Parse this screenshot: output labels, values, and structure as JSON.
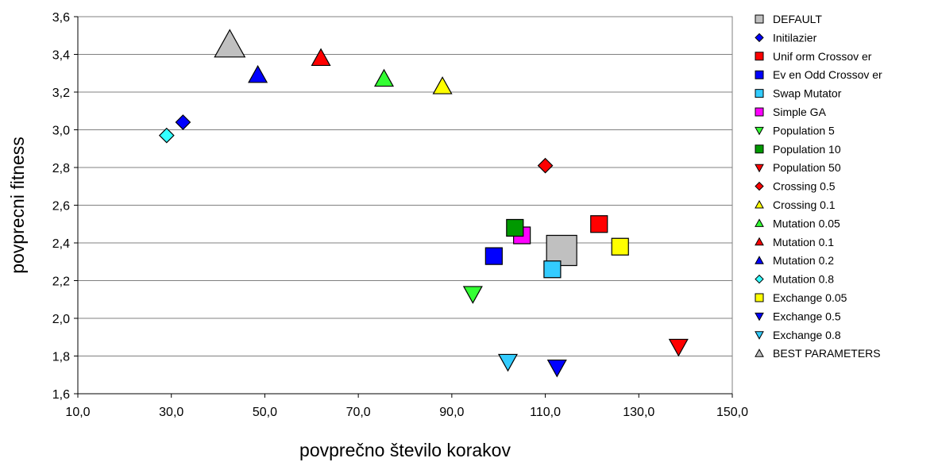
{
  "chart_data": {
    "type": "scatter",
    "xlabel": "povprečno število korakov",
    "ylabel": "povprecni fitness",
    "xlim": [
      10,
      150
    ],
    "ylim": [
      1.6,
      3.6
    ],
    "x_ticks": [
      "10,0",
      "30,0",
      "50,0",
      "70,0",
      "90,0",
      "110,0",
      "130,0",
      "150,0"
    ],
    "y_ticks": [
      "1,6",
      "1,8",
      "2,0",
      "2,2",
      "2,4",
      "2,6",
      "2,8",
      "3,0",
      "3,2",
      "3,4",
      "3,6"
    ],
    "grid": "horizontal",
    "legend_position": "right",
    "series": [
      {
        "name": "DEFAULT",
        "marker": "square",
        "color": "#C0C0C0",
        "size": "large",
        "points": [
          [
            113.5,
            2.36
          ]
        ]
      },
      {
        "name": "Initilazier",
        "marker": "diamond",
        "color": "#0000FF",
        "size": "normal",
        "points": [
          [
            32.5,
            3.04
          ]
        ]
      },
      {
        "name": "Unif orm Crossov er",
        "marker": "square",
        "color": "#FF0000",
        "size": "normal",
        "points": [
          [
            121.5,
            2.5
          ]
        ]
      },
      {
        "name": "Ev en Odd Crossov er",
        "marker": "square",
        "color": "#0000FF",
        "size": "normal",
        "points": [
          [
            99,
            2.33
          ]
        ]
      },
      {
        "name": "Swap Mutator",
        "marker": "square",
        "color": "#33CCFF",
        "size": "normal",
        "points": [
          [
            111.5,
            2.26
          ]
        ]
      },
      {
        "name": "Simple GA",
        "marker": "square",
        "color": "#FF00FF",
        "size": "normal",
        "points": [
          [
            105,
            2.44
          ]
        ]
      },
      {
        "name": "Population 5",
        "marker": "triangle-down",
        "color": "#33FF33",
        "size": "normal",
        "points": [
          [
            94.5,
            2.13
          ]
        ]
      },
      {
        "name": "Population 10",
        "marker": "square",
        "color": "#009900",
        "size": "normal",
        "points": [
          [
            103.5,
            2.48
          ]
        ]
      },
      {
        "name": "Population 50",
        "marker": "triangle-down",
        "color": "#FF0000",
        "size": "normal",
        "points": [
          [
            138.5,
            1.85
          ]
        ]
      },
      {
        "name": "Crossing 0.5",
        "marker": "diamond",
        "color": "#FF0000",
        "size": "normal",
        "points": [
          [
            110,
            2.81
          ]
        ]
      },
      {
        "name": "Crossing 0.1",
        "marker": "triangle-up",
        "color": "#FFFF00",
        "size": "normal",
        "points": [
          [
            88,
            3.23
          ]
        ]
      },
      {
        "name": "Mutation 0.05",
        "marker": "triangle-up",
        "color": "#33FF33",
        "size": "normal",
        "points": [
          [
            75.5,
            3.27
          ]
        ]
      },
      {
        "name": "Mutation 0.1",
        "marker": "triangle-up",
        "color": "#FF0000",
        "size": "normal",
        "points": [
          [
            62,
            3.38
          ]
        ]
      },
      {
        "name": "Mutation 0.2",
        "marker": "triangle-up",
        "color": "#0000FF",
        "size": "normal",
        "points": [
          [
            48.5,
            3.29
          ]
        ]
      },
      {
        "name": "Mutation 0.8",
        "marker": "diamond",
        "color": "#33FFFF",
        "size": "normal",
        "points": [
          [
            29,
            2.97
          ]
        ]
      },
      {
        "name": "Exchange 0.05",
        "marker": "square",
        "color": "#FFFF00",
        "size": "normal",
        "points": [
          [
            126,
            2.38
          ]
        ]
      },
      {
        "name": "Exchange 0.5",
        "marker": "triangle-down",
        "color": "#0000FF",
        "size": "normal",
        "points": [
          [
            112.5,
            1.74
          ]
        ]
      },
      {
        "name": "Exchange 0.8",
        "marker": "triangle-down",
        "color": "#33CCFF",
        "size": "normal",
        "points": [
          [
            102,
            1.77
          ]
        ]
      },
      {
        "name": "BEST PARAMETERS",
        "marker": "triangle-up",
        "color": "#C0C0C0",
        "size": "large",
        "points": [
          [
            42.5,
            3.45
          ]
        ]
      }
    ]
  }
}
